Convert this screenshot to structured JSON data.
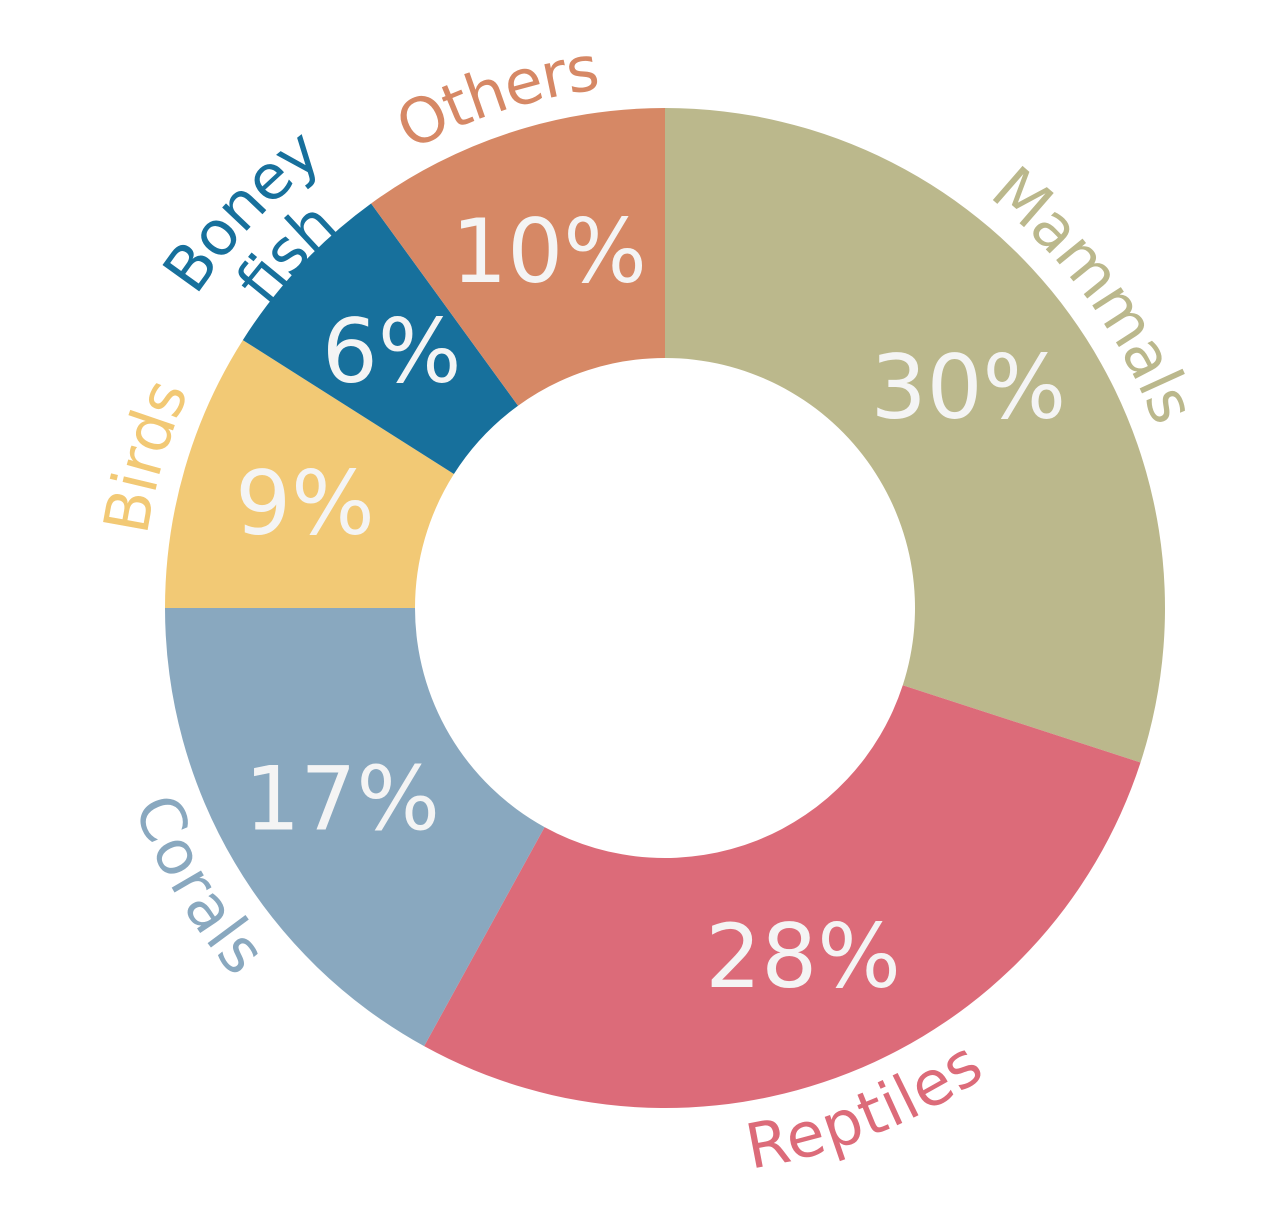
{
  "chart_data": {
    "type": "pie",
    "donut": true,
    "categories": [
      "Mammals",
      "Reptiles",
      "Corals",
      "Birds",
      "Boney fish",
      "Others"
    ],
    "values": [
      30,
      28,
      17,
      9,
      6,
      10
    ],
    "value_labels": [
      "30%",
      "28%",
      "17%",
      "9%",
      "6%",
      "10%"
    ],
    "category_label_lines": [
      [
        "Mammals"
      ],
      [
        "Reptiles"
      ],
      [
        "Corals"
      ],
      [
        "Birds"
      ],
      [
        "Boney",
        "fish"
      ],
      [
        "Others"
      ]
    ],
    "colors": [
      "#bbb88c",
      "#dc6b79",
      "#89a8bf",
      "#f2c975",
      "#17709c",
      "#d68865"
    ],
    "start_angle_deg": 0,
    "direction": "clockwise",
    "legend": "none"
  }
}
